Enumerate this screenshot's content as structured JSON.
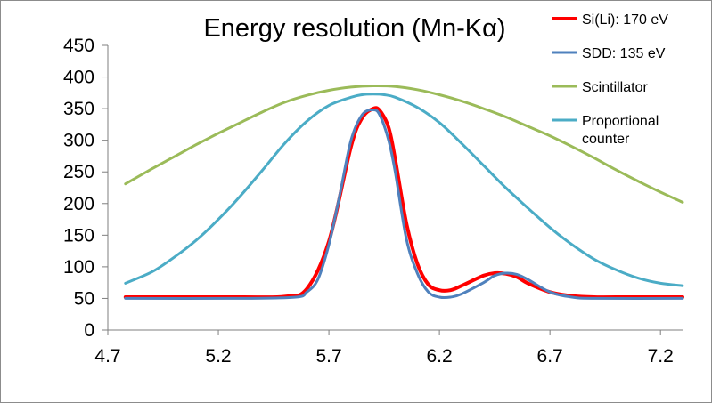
{
  "chart_data": {
    "type": "line",
    "title": "Energy resolution (Mn-Kα)",
    "xlabel": "",
    "ylabel": "",
    "xlim": [
      4.7,
      7.3
    ],
    "ylim": [
      0,
      450
    ],
    "x_ticks": [
      "4.7",
      "5.2",
      "5.7",
      "6.2",
      "6.7",
      "7.2"
    ],
    "y_ticks": [
      "0",
      "50",
      "100",
      "150",
      "200",
      "250",
      "300",
      "350",
      "400",
      "450"
    ],
    "grid": false,
    "legend_position": "top-right",
    "series": [
      {
        "name": "Si(Li): 170 eV",
        "color": "#ff0000",
        "x": [
          4.78,
          5.3,
          5.5,
          5.6,
          5.7,
          5.8,
          5.85,
          5.9,
          5.93,
          5.97,
          6.0,
          6.05,
          6.1,
          6.15,
          6.2,
          6.25,
          6.3,
          6.4,
          6.45,
          6.5,
          6.55,
          6.6,
          6.7,
          6.8,
          6.9,
          7.0,
          7.3
        ],
        "y": [
          52,
          52,
          53,
          65,
          140,
          290,
          335,
          350,
          347,
          320,
          270,
          170,
          105,
          72,
          63,
          63,
          70,
          86,
          90,
          89,
          84,
          74,
          60,
          54,
          52,
          52,
          52
        ]
      },
      {
        "name": "SDD: 135 eV",
        "color": "#4f81bd",
        "x": [
          4.78,
          5.3,
          5.55,
          5.6,
          5.65,
          5.7,
          5.75,
          5.8,
          5.85,
          5.9,
          5.93,
          5.97,
          6.0,
          6.05,
          6.1,
          6.15,
          6.2,
          6.25,
          6.3,
          6.4,
          6.45,
          6.5,
          6.55,
          6.6,
          6.7,
          6.8,
          6.9,
          7.3
        ],
        "y": [
          50,
          50,
          52,
          60,
          80,
          135,
          215,
          300,
          340,
          348,
          340,
          300,
          250,
          145,
          90,
          60,
          52,
          52,
          57,
          75,
          86,
          90,
          88,
          80,
          60,
          52,
          50,
          50
        ]
      },
      {
        "name": "Scintillator",
        "color": "#9bbb59",
        "x": [
          4.78,
          4.9,
          5.0,
          5.1,
          5.2,
          5.3,
          5.4,
          5.5,
          5.6,
          5.7,
          5.8,
          5.9,
          6.0,
          6.1,
          6.2,
          6.3,
          6.4,
          6.5,
          6.6,
          6.7,
          6.8,
          6.9,
          7.0,
          7.1,
          7.2,
          7.3
        ],
        "y": [
          231,
          255,
          274,
          293,
          311,
          328,
          345,
          360,
          371,
          379,
          384,
          386,
          385,
          380,
          372,
          362,
          350,
          337,
          322,
          307,
          290,
          272,
          253,
          235,
          218,
          202
        ]
      },
      {
        "name": "Proportional counter",
        "color": "#4bacc6",
        "x": [
          4.78,
          4.9,
          5.0,
          5.1,
          5.2,
          5.3,
          5.4,
          5.5,
          5.6,
          5.7,
          5.8,
          5.85,
          5.9,
          5.95,
          6.0,
          6.1,
          6.2,
          6.3,
          6.4,
          6.5,
          6.6,
          6.7,
          6.8,
          6.9,
          7.0,
          7.1,
          7.2,
          7.3
        ],
        "y": [
          74,
          92,
          115,
          142,
          175,
          212,
          253,
          295,
          330,
          355,
          368,
          372,
          373,
          372,
          368,
          352,
          328,
          295,
          260,
          225,
          193,
          162,
          135,
          112,
          95,
          82,
          74,
          70
        ]
      }
    ]
  }
}
